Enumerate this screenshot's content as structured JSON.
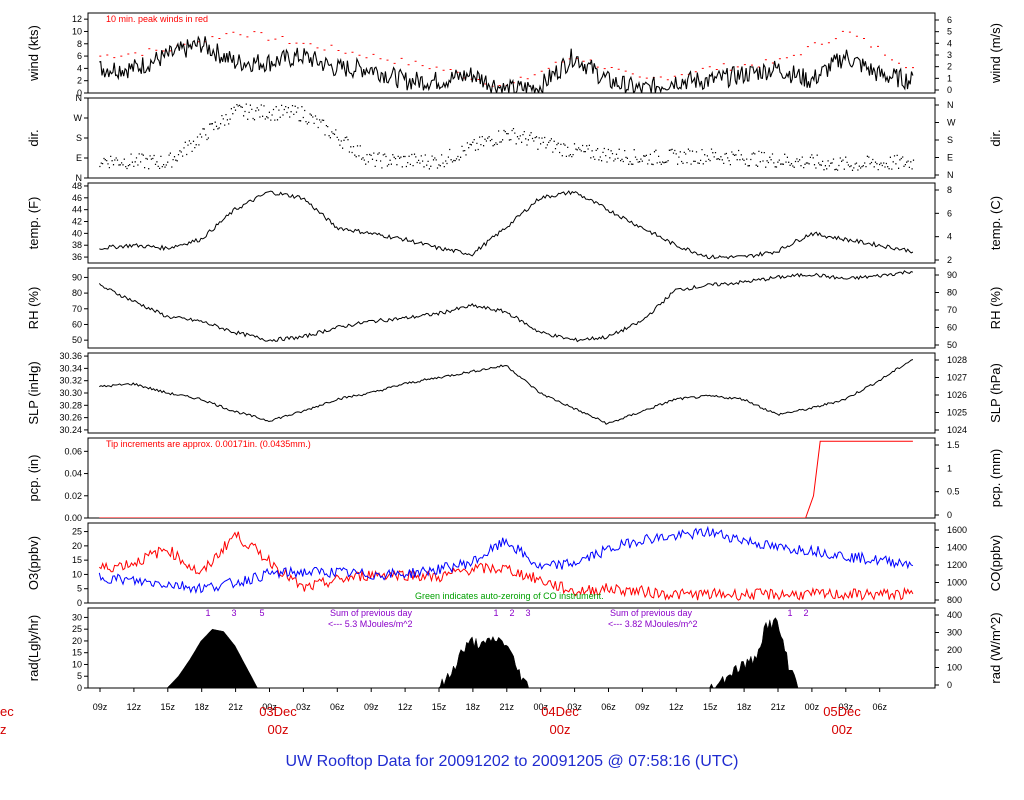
{
  "title": "UW Rooftop Data for 20091202  to  20091205 @ 07:58:16  (UTC)",
  "x_axis": {
    "hour_labels": [
      "09z",
      "12z",
      "15z",
      "18z",
      "21z",
      "00z",
      "03z",
      "06z",
      "09z",
      "12z",
      "15z",
      "18z",
      "21z",
      "00z",
      "03z",
      "06z",
      "09z",
      "12z",
      "15z",
      "18z",
      "21z",
      "00z",
      "03z",
      "06z"
    ],
    "date_labels": [
      {
        "date": "03Dec",
        "time": "00z"
      },
      {
        "date": "04Dec",
        "time": "00z"
      },
      {
        "date": "05Dec",
        "time": "00z"
      }
    ],
    "cut_left_date": "ec",
    "cut_left_time": "z"
  },
  "colors": {
    "black": "#000000",
    "red": "#ff0000",
    "blue": "#0000ff",
    "green": "#00a000",
    "purple": "#8a00c8",
    "title_blue": "#1f2bd0",
    "date_red": "#d40000"
  },
  "chart_data": [
    {
      "id": "wind",
      "type": "line",
      "ylabel_left": "wind (kts)",
      "ylabel_right": "wind (m/s)",
      "yticks_left": [
        "0",
        "2",
        "4",
        "6",
        "8",
        "10",
        "12"
      ],
      "yticks_right": [
        "0",
        "1",
        "2",
        "3",
        "4",
        "5",
        "6"
      ],
      "ylim": [
        0,
        13
      ],
      "annotation": "10 min. peak winds in red",
      "series": [
        {
          "name": "10 min. peak winds",
          "color": "red",
          "x": [
            0,
            6,
            12,
            18,
            24,
            30,
            36,
            42,
            48,
            54,
            60,
            66,
            72
          ],
          "y": [
            6,
            7,
            10,
            8,
            6,
            4,
            1,
            6,
            2,
            4,
            5,
            10,
            4
          ]
        },
        {
          "x": [
            0,
            3,
            6,
            9,
            12,
            15,
            18,
            21,
            24,
            27,
            30,
            33,
            36,
            39,
            42,
            45,
            48,
            51,
            54,
            57,
            60,
            63,
            66,
            69,
            72
          ],
          "y": [
            4,
            4,
            6,
            8,
            5,
            5,
            6,
            4,
            4,
            2,
            2,
            3,
            0.5,
            1,
            6,
            2,
            0.5,
            2,
            2,
            3,
            4,
            2,
            6,
            3,
            2
          ]
        }
      ]
    },
    {
      "id": "dir",
      "type": "scatter",
      "ylabel_left": "dir.",
      "ylabel_right": "dir.",
      "yticks_left": [
        "N",
        "E",
        "S",
        "W",
        "N"
      ],
      "yticks_right": [
        "N",
        "E",
        "S",
        "W",
        "N"
      ],
      "ylim": [
        0,
        360
      ],
      "series": [
        {
          "x": [
            0,
            6,
            12,
            18,
            24,
            30,
            36,
            42,
            48,
            54,
            60,
            66,
            72
          ],
          "y": [
            80,
            70,
            300,
            290,
            80,
            75,
            200,
            120,
            90,
            100,
            80,
            60,
            70
          ]
        }
      ]
    },
    {
      "id": "temp",
      "type": "line",
      "ylabel_left": "temp. (F)",
      "ylabel_right": "temp. (C)",
      "yticks_left": [
        "36",
        "38",
        "40",
        "42",
        "44",
        "46",
        "48"
      ],
      "yticks_right": [
        "2",
        "4",
        "6",
        "8"
      ],
      "ylim": [
        35,
        48.5
      ],
      "series": [
        {
          "x": [
            0,
            3,
            6,
            9,
            12,
            15,
            18,
            21,
            24,
            27,
            30,
            33,
            36,
            39,
            42,
            45,
            48,
            51,
            54,
            57,
            60,
            63,
            66,
            69,
            72
          ],
          "y": [
            37.5,
            38,
            37.5,
            39,
            44,
            47,
            46,
            41,
            40,
            39,
            37.5,
            36.5,
            41,
            46,
            47,
            44,
            41,
            38,
            36,
            36,
            37,
            40,
            39,
            38,
            37
          ]
        }
      ]
    },
    {
      "id": "rh",
      "type": "line",
      "ylabel_left": "RH (%)",
      "ylabel_right": "RH (%)",
      "yticks_left": [
        "50",
        "60",
        "70",
        "80",
        "90"
      ],
      "yticks_right": [
        "50",
        "60",
        "70",
        "80",
        "90"
      ],
      "ylim": [
        45,
        96
      ],
      "series": [
        {
          "x": [
            0,
            3,
            6,
            9,
            12,
            15,
            18,
            21,
            24,
            27,
            30,
            33,
            36,
            39,
            42,
            45,
            48,
            51,
            54,
            57,
            60,
            63,
            66,
            69,
            72
          ],
          "y": [
            85,
            75,
            65,
            62,
            55,
            50,
            52,
            58,
            62,
            64,
            67,
            72,
            68,
            55,
            50,
            52,
            62,
            82,
            85,
            87,
            90,
            92,
            89,
            91,
            94
          ]
        }
      ]
    },
    {
      "id": "slp",
      "type": "line",
      "ylabel_left": "SLP (inHg)",
      "ylabel_right": "SLP (hPa)",
      "yticks_left": [
        "30.24",
        "30.26",
        "30.28",
        "30.30",
        "30.32",
        "30.34",
        "30.36"
      ],
      "yticks_right": [
        "1024",
        "1025",
        "1026",
        "1027",
        "1028"
      ],
      "ylim": [
        30.235,
        30.365
      ],
      "series": [
        {
          "x": [
            0,
            3,
            6,
            9,
            12,
            15,
            18,
            21,
            24,
            27,
            30,
            33,
            36,
            39,
            42,
            45,
            48,
            51,
            54,
            57,
            60,
            63,
            66,
            69,
            72
          ],
          "y": [
            30.31,
            30.315,
            30.3,
            30.29,
            30.27,
            30.255,
            30.27,
            30.29,
            30.3,
            30.315,
            30.325,
            30.335,
            30.345,
            30.3,
            30.275,
            30.25,
            30.27,
            30.29,
            30.295,
            30.29,
            30.265,
            30.275,
            30.29,
            30.32,
            30.355
          ]
        }
      ]
    },
    {
      "id": "pcp",
      "type": "line",
      "ylabel_left": "pcp. (in)",
      "ylabel_right": "pcp. (mm)",
      "yticks_left": [
        "0.00",
        "0.02",
        "0.04",
        "0.06"
      ],
      "yticks_right": [
        "0",
        "0.5",
        "1",
        "1.5"
      ],
      "ylim": [
        0,
        0.072
      ],
      "annotation": "Tip increments are approx. 0.00171in. (0.0435mm.)",
      "series": [
        {
          "color": "red",
          "x": [
            0,
            62.5,
            63.2,
            63.8,
            72
          ],
          "y": [
            0,
            0,
            0.02,
            0.069,
            0.069
          ]
        }
      ]
    },
    {
      "id": "o3co",
      "type": "line",
      "ylabel_left": "O3(ppbv)",
      "ylabel_right": "CO(ppbv)",
      "yticks_left": [
        "0",
        "5",
        "10",
        "15",
        "20",
        "25"
      ],
      "yticks_right": [
        "800",
        "1000",
        "1200",
        "1400",
        "1600"
      ],
      "ylim": [
        0,
        28
      ],
      "annotation": "Green indicates auto-zeroing of CO instrument.",
      "series": [
        {
          "name": "O3",
          "color": "red",
          "x": [
            0,
            3,
            6,
            9,
            12,
            15,
            18,
            21,
            24,
            27,
            30,
            33,
            36,
            39,
            42,
            45,
            48,
            51,
            54,
            57,
            60,
            63,
            66,
            69,
            72
          ],
          "y": [
            12,
            14,
            19,
            10,
            24,
            15,
            5,
            8,
            10,
            10,
            9,
            12,
            12,
            8,
            4,
            5,
            4,
            3,
            3,
            3,
            3,
            3,
            3,
            3,
            3
          ]
        },
        {
          "name": "CO",
          "color": "blue",
          "x": [
            0,
            3,
            6,
            9,
            12,
            15,
            18,
            21,
            24,
            27,
            30,
            33,
            36,
            39,
            42,
            45,
            48,
            51,
            54,
            57,
            60,
            63,
            66,
            69,
            72
          ],
          "y": [
            1000,
            950,
            920,
            870,
            930,
            1030,
            1050,
            1050,
            1020,
            1030,
            1080,
            1160,
            1400,
            1100,
            1150,
            1300,
            1420,
            1450,
            1500,
            1410,
            1320,
            1300,
            1230,
            1180,
            1150
          ]
        }
      ]
    },
    {
      "id": "rad",
      "type": "area",
      "ylabel_left": "rad(Lgly/hr)",
      "ylabel_right": "rad (W/m^2)",
      "yticks_left": [
        "0",
        "5",
        "10",
        "15",
        "20",
        "25",
        "30"
      ],
      "yticks_right": [
        "0",
        "100",
        "200",
        "300",
        "400"
      ],
      "ylim": [
        0,
        34
      ],
      "annotations": [
        {
          "text": "Sum of previous day",
          "color": "purple"
        },
        {
          "text": "<--- 5.3 MJoules/m^2",
          "color": "purple"
        },
        {
          "text": "Sum of previous day",
          "color": "purple"
        },
        {
          "text": "<--- 3.82 MJoules/m^2",
          "color": "purple"
        }
      ],
      "top_marks": [
        "1",
        "3",
        "5",
        "1",
        "2",
        "3",
        "1",
        "2"
      ],
      "series": [
        {
          "color": "black",
          "x": [
            6,
            7,
            8,
            9,
            10,
            11,
            12,
            13,
            14,
            30,
            31,
            32,
            33,
            34,
            35,
            36,
            37,
            38,
            54,
            55,
            56,
            57,
            58,
            59,
            60,
            61,
            62
          ],
          "y": [
            0,
            5,
            12,
            20,
            25,
            24,
            18,
            9,
            0,
            0,
            5,
            15,
            20,
            18,
            21,
            19,
            8,
            0,
            0,
            3,
            7,
            10,
            12,
            27,
            28,
            10,
            0
          ]
        }
      ]
    }
  ]
}
